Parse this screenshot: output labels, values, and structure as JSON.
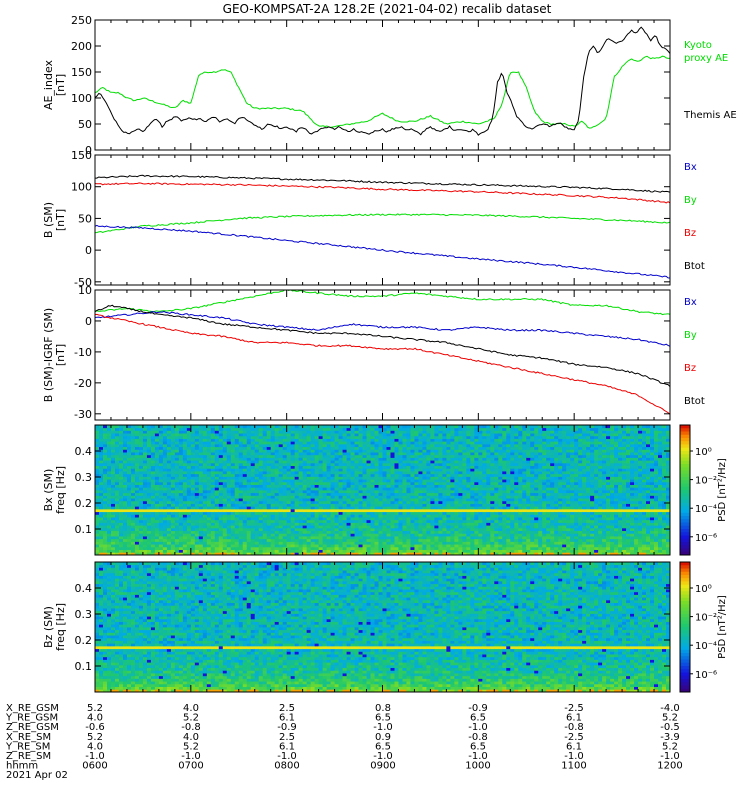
{
  "title": "GEO-KOMPSAT-2A 128.2E (2021-04-02) recalib dataset",
  "colors": {
    "black": "#000000",
    "red": "#ee0000",
    "green": "#00dd00",
    "blue": "#0000cc"
  },
  "chart_data": [
    {
      "type": "line",
      "name": "ae",
      "ylabel": [
        "AE_index",
        "[nT]"
      ],
      "ylim": [
        0,
        250
      ],
      "yticks": [
        0,
        50,
        100,
        150,
        200,
        250
      ],
      "xlim": [
        0,
        360
      ],
      "legend": [
        {
          "text": "Kyoto",
          "color": "#00dd00"
        },
        {
          "text": "proxy AE",
          "color": "#00dd00"
        },
        {
          "text": "Themis AE",
          "color": "#000000"
        }
      ],
      "series": [
        {
          "name": "Kyoto proxy AE",
          "color": "#00dd00",
          "x": [
            0,
            5,
            10,
            15,
            20,
            25,
            30,
            35,
            40,
            45,
            50,
            55,
            60,
            65,
            70,
            75,
            80,
            85,
            90,
            95,
            100,
            110,
            120,
            130,
            140,
            150,
            160,
            170,
            180,
            190,
            200,
            210,
            220,
            230,
            240,
            250,
            255,
            260,
            265,
            270,
            275,
            280,
            285,
            290,
            295,
            300,
            305,
            310,
            315,
            320,
            325,
            330,
            335,
            340,
            345,
            350,
            355,
            360
          ],
          "y": [
            110,
            120,
            110,
            110,
            100,
            95,
            100,
            95,
            90,
            85,
            80,
            95,
            90,
            145,
            150,
            150,
            155,
            150,
            120,
            90,
            80,
            80,
            80,
            75,
            45,
            45,
            50,
            55,
            70,
            55,
            55,
            65,
            50,
            55,
            50,
            60,
            90,
            150,
            150,
            120,
            75,
            55,
            50,
            50,
            50,
            45,
            55,
            40,
            50,
            60,
            140,
            160,
            175,
            170,
            180,
            175,
            180,
            175
          ]
        },
        {
          "name": "Themis AE",
          "color": "#000000",
          "x": [
            0,
            3,
            6,
            9,
            12,
            15,
            18,
            21,
            24,
            27,
            30,
            33,
            36,
            39,
            42,
            45,
            48,
            51,
            54,
            57,
            60,
            63,
            66,
            69,
            72,
            75,
            78,
            81,
            84,
            87,
            90,
            93,
            96,
            99,
            102,
            105,
            108,
            111,
            114,
            117,
            120,
            123,
            126,
            129,
            132,
            135,
            138,
            141,
            144,
            147,
            150,
            153,
            156,
            159,
            162,
            165,
            168,
            171,
            174,
            177,
            180,
            183,
            186,
            189,
            192,
            195,
            198,
            201,
            204,
            207,
            210,
            213,
            216,
            219,
            222,
            225,
            228,
            231,
            234,
            237,
            240,
            243,
            246,
            249,
            252,
            255,
            258,
            261,
            264,
            267,
            270,
            273,
            276,
            279,
            282,
            285,
            288,
            291,
            294,
            297,
            300,
            303,
            306,
            309,
            312,
            315,
            318,
            321,
            324,
            327,
            330,
            333,
            336,
            339,
            342,
            345,
            348,
            351,
            354,
            357,
            360
          ],
          "y": [
            100,
            110,
            95,
            80,
            60,
            45,
            35,
            30,
            35,
            40,
            35,
            45,
            55,
            60,
            45,
            55,
            60,
            65,
            55,
            60,
            62,
            58,
            60,
            55,
            60,
            65,
            55,
            60,
            58,
            50,
            60,
            65,
            55,
            50,
            45,
            40,
            50,
            48,
            45,
            40,
            45,
            40,
            35,
            45,
            40,
            30,
            35,
            40,
            42,
            45,
            40,
            45,
            38,
            35,
            40,
            32,
            35,
            30,
            35,
            38,
            40,
            35,
            40,
            42,
            45,
            38,
            40,
            35,
            30,
            40,
            45,
            38,
            35,
            40,
            45,
            38,
            40,
            38,
            35,
            40,
            30,
            35,
            40,
            60,
            130,
            150,
            110,
            90,
            65,
            55,
            45,
            40,
            45,
            48,
            50,
            45,
            50,
            52,
            45,
            40,
            38,
            60,
            140,
            190,
            200,
            185,
            200,
            215,
            210,
            205,
            210,
            220,
            230,
            225,
            235,
            225,
            210,
            220,
            200,
            195,
            185
          ]
        }
      ]
    },
    {
      "type": "line",
      "name": "bsm",
      "ylabel": [
        "B (SM)",
        "[nT]"
      ],
      "ylim": [
        -55,
        150
      ],
      "yticks": [
        -50,
        0,
        50,
        100,
        150
      ],
      "xlim": [
        0,
        360
      ],
      "legend": [
        {
          "text": "Bx",
          "color": "#0000cc"
        },
        {
          "text": "By",
          "color": "#00dd00"
        },
        {
          "text": "Bz",
          "color": "#ee0000"
        },
        {
          "text": "Btot",
          "color": "#000000"
        }
      ],
      "series": [
        {
          "name": "Btot",
          "color": "#000000",
          "x": [
            0,
            30,
            60,
            90,
            120,
            150,
            180,
            210,
            240,
            270,
            300,
            330,
            360
          ],
          "y": [
            114,
            117,
            116,
            114,
            112,
            110,
            107,
            105,
            103,
            101,
            99,
            96,
            91
          ]
        },
        {
          "name": "Bz",
          "color": "#ee0000",
          "x": [
            0,
            30,
            60,
            90,
            120,
            150,
            180,
            210,
            240,
            270,
            300,
            330,
            360
          ],
          "y": [
            104,
            105,
            104,
            103,
            101,
            99,
            96,
            94,
            92,
            89,
            86,
            82,
            75
          ]
        },
        {
          "name": "By",
          "color": "#00dd00",
          "x": [
            0,
            30,
            60,
            90,
            120,
            150,
            180,
            210,
            240,
            270,
            300,
            330,
            360
          ],
          "y": [
            27,
            38,
            43,
            50,
            53,
            55,
            56,
            56,
            55,
            53,
            50,
            47,
            43
          ]
        },
        {
          "name": "Bx",
          "color": "#0000cc",
          "x": [
            0,
            30,
            60,
            90,
            120,
            150,
            180,
            210,
            240,
            270,
            300,
            330,
            360
          ],
          "y": [
            38,
            35,
            30,
            23,
            15,
            8,
            0,
            -7,
            -14,
            -20,
            -27,
            -35,
            -43
          ]
        }
      ]
    },
    {
      "type": "line",
      "name": "bigrf",
      "ylabel": [
        "B (SM)-IGRF (SM)",
        "[nT]"
      ],
      "ylim": [
        -32,
        10
      ],
      "yticks": [
        -30,
        -20,
        -10,
        0,
        10
      ],
      "xlim": [
        0,
        360
      ],
      "legend": [
        {
          "text": "Bx",
          "color": "#0000cc"
        },
        {
          "text": "By",
          "color": "#00dd00"
        },
        {
          "text": "Bz",
          "color": "#ee0000"
        },
        {
          "text": "Btot",
          "color": "#000000"
        }
      ],
      "series": [
        {
          "name": "By",
          "color": "#00dd00",
          "x": [
            0,
            20,
            40,
            60,
            80,
            100,
            120,
            140,
            160,
            180,
            200,
            220,
            240,
            260,
            280,
            300,
            320,
            340,
            360
          ],
          "y": [
            3,
            4,
            3,
            4,
            6,
            8,
            10,
            9,
            8,
            8,
            9,
            8,
            7,
            7,
            7,
            5,
            5,
            3,
            2
          ]
        },
        {
          "name": "Bx",
          "color": "#0000cc",
          "x": [
            0,
            20,
            40,
            60,
            80,
            100,
            120,
            140,
            160,
            180,
            200,
            220,
            240,
            260,
            280,
            300,
            320,
            340,
            360
          ],
          "y": [
            1,
            2,
            3,
            2,
            1,
            -1,
            -2,
            -3,
            -1,
            -2,
            -2,
            -3,
            -2,
            -3,
            -3,
            -4,
            -5,
            -6,
            -8
          ]
        },
        {
          "name": "Btot",
          "color": "#000000",
          "x": [
            0,
            10,
            20,
            40,
            60,
            80,
            100,
            120,
            140,
            160,
            180,
            200,
            220,
            240,
            260,
            280,
            300,
            320,
            340,
            360
          ],
          "y": [
            3,
            5,
            4,
            2,
            1,
            -1,
            -2,
            -3,
            -4,
            -4,
            -5,
            -6,
            -7,
            -9,
            -11,
            -12,
            -14,
            -15,
            -17,
            -21
          ]
        },
        {
          "name": "Bz",
          "color": "#ee0000",
          "x": [
            0,
            20,
            40,
            60,
            80,
            100,
            120,
            140,
            160,
            180,
            200,
            220,
            240,
            260,
            280,
            300,
            320,
            340,
            360
          ],
          "y": [
            2,
            0,
            -2,
            -4,
            -5,
            -7,
            -7,
            -8,
            -8,
            -9,
            -9,
            -11,
            -13,
            -15,
            -17,
            -19,
            -21,
            -24,
            -30
          ]
        }
      ]
    },
    {
      "type": "heatmap",
      "name": "bx-spec",
      "ylabel": [
        "Bx (SM)",
        "freq [Hz]"
      ],
      "ylim": [
        0,
        0.5
      ],
      "yticks": [
        0.1,
        0.2,
        0.3,
        0.4
      ],
      "colorbar": {
        "label": "PSD [nT²/Hz]",
        "ticks": [
          "10⁰",
          "10⁻²",
          "10⁻⁴",
          "10⁻⁶"
        ]
      },
      "line_freq": 0.17
    },
    {
      "type": "heatmap",
      "name": "bz-spec",
      "ylabel": [
        "Bz (SM)",
        "freq [Hz]"
      ],
      "ylim": [
        0,
        0.5
      ],
      "yticks": [
        0.1,
        0.2,
        0.3,
        0.4
      ],
      "colorbar": {
        "label": "PSD [nT²/Hz]",
        "ticks": [
          "10⁰",
          "10⁻²",
          "10⁻⁴",
          "10⁻⁶"
        ]
      },
      "line_freq": 0.17
    }
  ],
  "orbit_table": {
    "rows": [
      {
        "label": "X_RE_GSM",
        "values": [
          "5.2",
          "4.0",
          "2.5",
          "0.8",
          "-0.9",
          "-2.5",
          "-4.0"
        ]
      },
      {
        "label": "Y_RE_GSM",
        "values": [
          "4.0",
          "5.2",
          "6.1",
          "6.5",
          "6.5",
          "6.1",
          "5.2"
        ]
      },
      {
        "label": "Z_RE_GSM",
        "values": [
          "-0.6",
          "-0.8",
          "-0.9",
          "-1.0",
          "-1.0",
          "-0.8",
          "-0.5"
        ]
      },
      {
        "label": "X_RE_SM",
        "values": [
          "5.2",
          "4.0",
          "2.5",
          "0.9",
          "-0.8",
          "-2.5",
          "-3.9"
        ]
      },
      {
        "label": "Y_RE_SM",
        "values": [
          "4.0",
          "5.2",
          "6.1",
          "6.5",
          "6.5",
          "6.1",
          "5.2"
        ]
      },
      {
        "label": "Z_RE_SM",
        "values": [
          "-1.0",
          "-1.0",
          "-1.0",
          "-1.0",
          "-1.0",
          "-1.0",
          "-1.0"
        ]
      },
      {
        "label": "hhmm",
        "values": [
          "0600",
          "0700",
          "0800",
          "0900",
          "1000",
          "1100",
          "1200"
        ]
      }
    ],
    "date": "2021 Apr 02"
  }
}
